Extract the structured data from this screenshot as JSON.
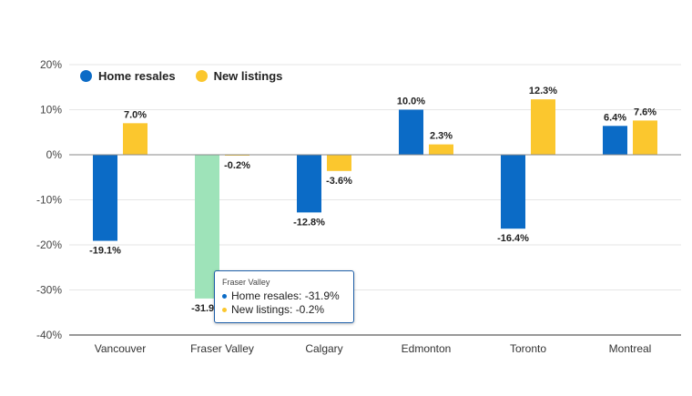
{
  "chart_data": {
    "type": "bar",
    "categories": [
      "Vancouver",
      "Fraser Valley",
      "Calgary",
      "Edmonton",
      "Toronto",
      "Montreal"
    ],
    "series": [
      {
        "name": "Home resales",
        "values": [
          -19.1,
          -31.9,
          -12.8,
          10.0,
          -16.4,
          6.4
        ],
        "color": "#0b6bc6"
      },
      {
        "name": "New listings",
        "values": [
          7.0,
          -0.2,
          -3.6,
          2.3,
          12.3,
          7.6
        ],
        "color": "#fbc72e"
      }
    ],
    "data_labels": {
      "Home resales": [
        "-19.1%",
        "-31.9%",
        "-12.8%",
        "10.0%",
        "-16.4%",
        "6.4%"
      ],
      "New listings": [
        "7.0%",
        "-0.2%",
        "-3.6%",
        "2.3%",
        "12.3%",
        "7.6%"
      ]
    },
    "y_ticks": [
      "20%",
      "10%",
      "0%",
      "-10%",
      "-20%",
      "-30%",
      "-40%"
    ],
    "ylim": [
      -40,
      20
    ],
    "grid": true,
    "legend_position": "top-left",
    "highlight": {
      "category": "Fraser Valley",
      "series": "Home resales",
      "color": "#9ee3b9"
    }
  },
  "tooltip": {
    "title": "Fraser Valley",
    "rows": [
      {
        "text": "Home resales: -31.9%",
        "color": "#0b6bc6"
      },
      {
        "text": "New listings: -0.2%",
        "color": "#fbc72e"
      }
    ]
  },
  "legend": {
    "items": [
      {
        "label": "Home resales",
        "color": "#0b6bc6"
      },
      {
        "label": "New listings",
        "color": "#fbc72e"
      }
    ]
  }
}
